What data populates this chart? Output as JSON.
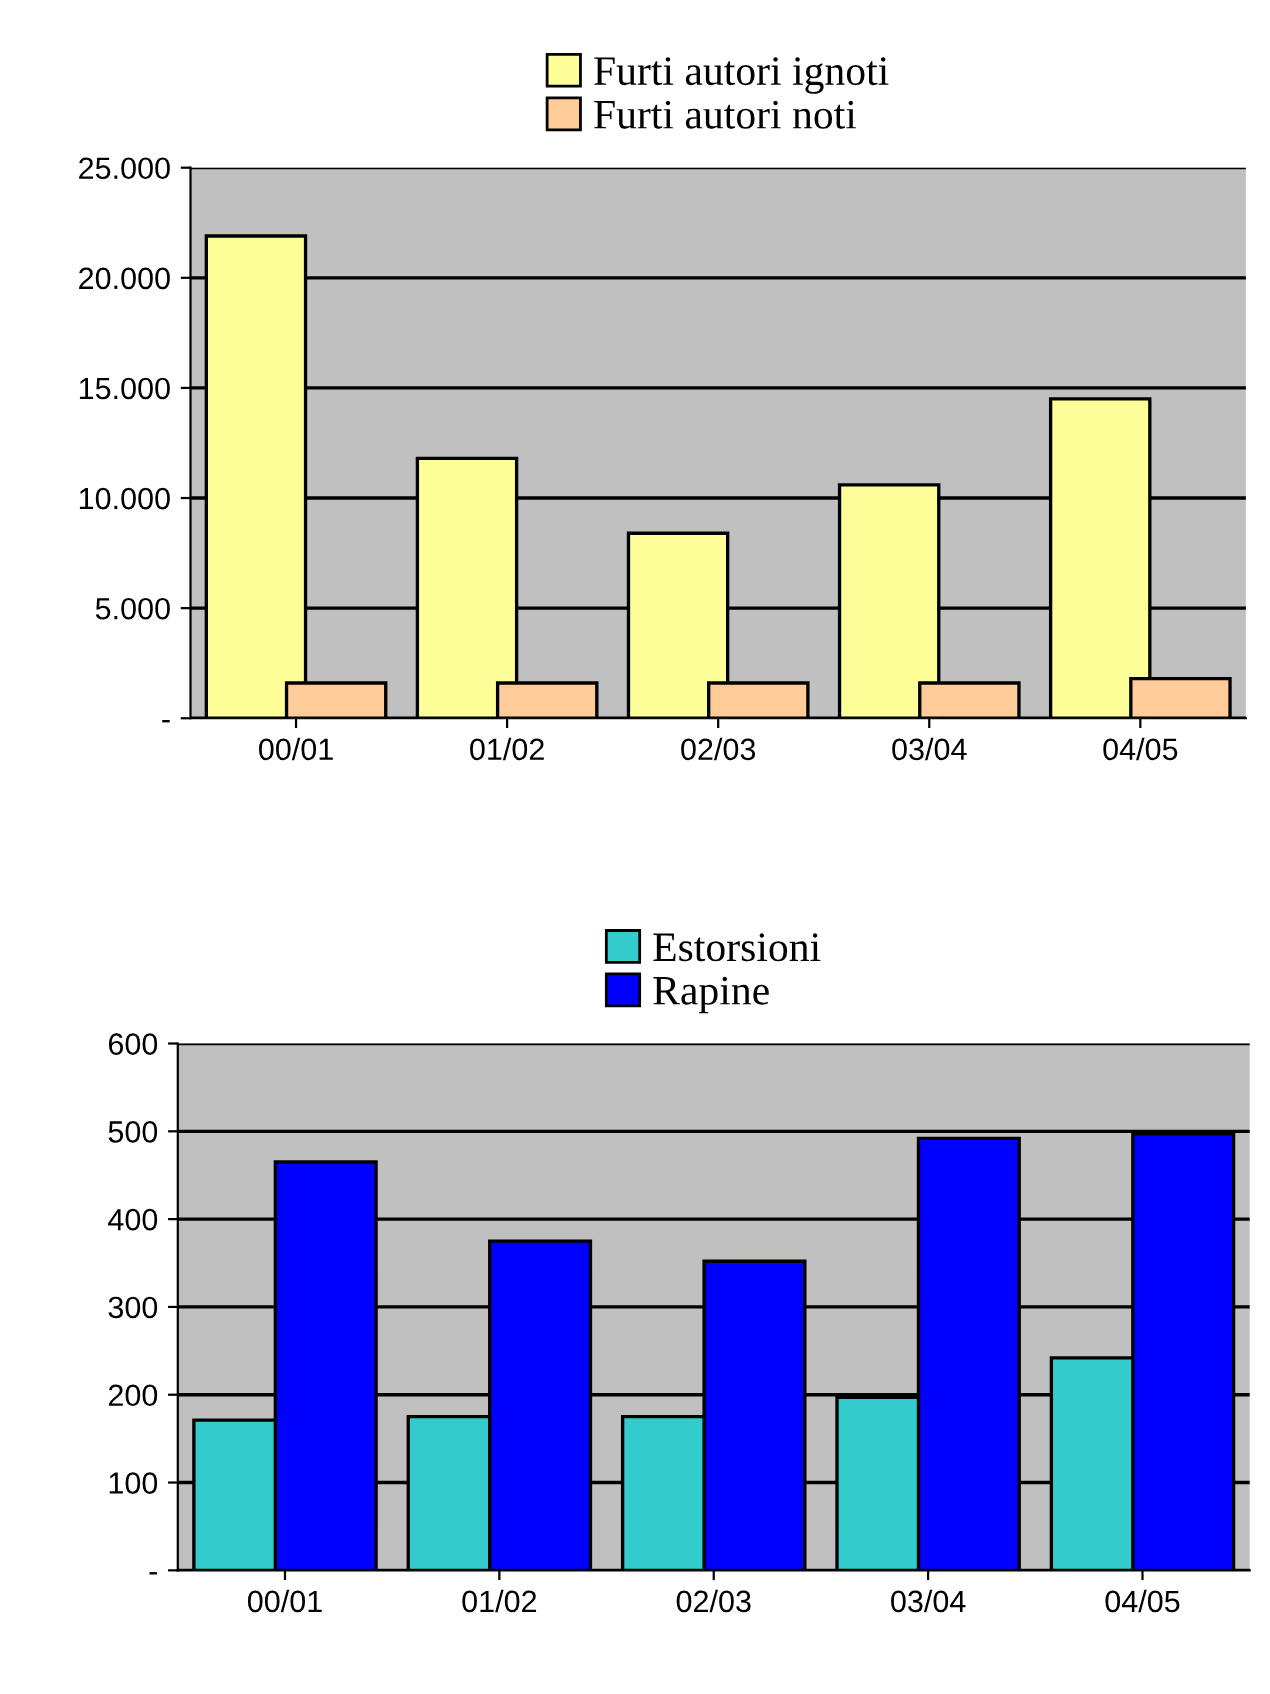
{
  "chart_data": [
    {
      "type": "bar",
      "categories": [
        "00/01",
        "01/02",
        "02/03",
        "03/04",
        "04/05"
      ],
      "series": [
        {
          "name": "Furti autori ignoti",
          "color": "#ffff99",
          "values": [
            21900,
            11800,
            8400,
            10600,
            14500
          ]
        },
        {
          "name": "Furti autori noti",
          "color": "#ffcc99",
          "values": [
            1600,
            1600,
            1600,
            1600,
            1800
          ]
        }
      ],
      "ylim": [
        0,
        25000
      ],
      "yticks": [
        {
          "value": 0,
          "label": "-"
        },
        {
          "value": 5000,
          "label": "5.000"
        },
        {
          "value": 10000,
          "label": "10.000"
        },
        {
          "value": 15000,
          "label": "15.000"
        },
        {
          "value": 20000,
          "label": "20.000"
        },
        {
          "value": 25000,
          "label": "25.000"
        }
      ],
      "grid": "y",
      "legend": "top"
    },
    {
      "type": "bar",
      "categories": [
        "00/01",
        "01/02",
        "02/03",
        "03/04",
        "04/05"
      ],
      "series": [
        {
          "name": "Estorsioni",
          "color": "#33cccc",
          "values": [
            171,
            175,
            175,
            197,
            242
          ]
        },
        {
          "name": "Rapine",
          "color": "#0000ff",
          "values": [
            465,
            375,
            352,
            492,
            497
          ]
        }
      ],
      "ylim": [
        0,
        600
      ],
      "yticks": [
        {
          "value": 0,
          "label": "-"
        },
        100,
        200,
        300,
        400,
        500,
        600
      ],
      "grid": "y",
      "legend": "top"
    }
  ]
}
